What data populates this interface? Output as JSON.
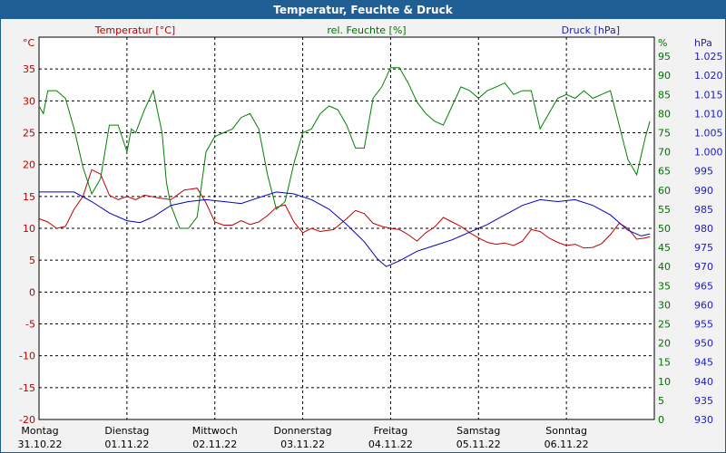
{
  "window_title": "Temperatur, Feuchte & Druck",
  "chart_data": {
    "type": "line",
    "title": "Temperatur, Feuchte & Druck",
    "x_range_days": [
      0,
      7
    ],
    "x_days": [
      {
        "day": "Montag",
        "date": "31.10.22"
      },
      {
        "day": "Dienstag",
        "date": "01.11.22"
      },
      {
        "day": "Mittwoch",
        "date": "02.11.22"
      },
      {
        "day": "Donnerstag",
        "date": "03.11.22"
      },
      {
        "day": "Freitag",
        "date": "04.11.22"
      },
      {
        "day": "Samstag",
        "date": "05.11.22"
      },
      {
        "day": "Sonntag",
        "date": "06.11.22"
      }
    ],
    "grid": true,
    "axes": {
      "temperature": {
        "label": "Temperatur [°C]",
        "unit": "°C",
        "range": [
          -20,
          40
        ],
        "ticks": [
          -20,
          -15,
          -10,
          -5,
          0,
          5,
          10,
          15,
          20,
          25,
          30,
          35
        ],
        "color": "#b40000",
        "side": "left"
      },
      "humidity": {
        "label": "rel. Feuchte [%]",
        "unit": "%",
        "range": [
          0,
          100
        ],
        "ticks": [
          0,
          5,
          10,
          15,
          20,
          25,
          30,
          35,
          40,
          45,
          50,
          55,
          60,
          65,
          70,
          75,
          80,
          85,
          90,
          95
        ],
        "color": "#007000",
        "side": "right"
      },
      "pressure": {
        "label": "Druck [hPa]",
        "unit": "hPa",
        "range": [
          930,
          1030
        ],
        "ticks": [
          "930",
          "935",
          "940",
          "945",
          "950",
          "955",
          "960",
          "965",
          "970",
          "975",
          "980",
          "985",
          "990",
          "995",
          "1.000",
          "1.005",
          "1.010",
          "1.015",
          "1.020",
          "1.025"
        ],
        "color": "#1c1cb8",
        "side": "right"
      }
    },
    "series": [
      {
        "name": "Temperatur [°C]",
        "axis": "temperature",
        "color": "#c00000",
        "points": [
          [
            0,
            11.5
          ],
          [
            0.1,
            11
          ],
          [
            0.2,
            10
          ],
          [
            0.3,
            10.3
          ],
          [
            0.4,
            13
          ],
          [
            0.5,
            15
          ],
          [
            0.6,
            19.2
          ],
          [
            0.7,
            18.5
          ],
          [
            0.8,
            15.2
          ],
          [
            0.9,
            14.5
          ],
          [
            1,
            15
          ],
          [
            1.1,
            14.5
          ],
          [
            1.2,
            15.2
          ],
          [
            1.35,
            14.8
          ],
          [
            1.5,
            14.5
          ],
          [
            1.65,
            16
          ],
          [
            1.8,
            16.3
          ],
          [
            1.9,
            14
          ],
          [
            2,
            11
          ],
          [
            2.1,
            10.5
          ],
          [
            2.2,
            10.5
          ],
          [
            2.3,
            11.2
          ],
          [
            2.4,
            10.6
          ],
          [
            2.5,
            11
          ],
          [
            2.6,
            12
          ],
          [
            2.7,
            13.3
          ],
          [
            2.8,
            13.7
          ],
          [
            2.9,
            11
          ],
          [
            3,
            9.3
          ],
          [
            3.1,
            10
          ],
          [
            3.2,
            9.5
          ],
          [
            3.35,
            9.8
          ],
          [
            3.5,
            11.5
          ],
          [
            3.6,
            12.8
          ],
          [
            3.7,
            12.3
          ],
          [
            3.8,
            10.8
          ],
          [
            3.9,
            10.3
          ],
          [
            4,
            10
          ],
          [
            4.1,
            9.8
          ],
          [
            4.2,
            9
          ],
          [
            4.3,
            8
          ],
          [
            4.4,
            9.3
          ],
          [
            4.5,
            10.2
          ],
          [
            4.6,
            11.7
          ],
          [
            4.7,
            11
          ],
          [
            4.8,
            10.3
          ],
          [
            4.9,
            9.3
          ],
          [
            5,
            8.5
          ],
          [
            5.1,
            7.8
          ],
          [
            5.2,
            7.5
          ],
          [
            5.3,
            7.7
          ],
          [
            5.4,
            7.3
          ],
          [
            5.5,
            8
          ],
          [
            5.6,
            9.8
          ],
          [
            5.7,
            9.5
          ],
          [
            5.8,
            8.5
          ],
          [
            5.9,
            7.8
          ],
          [
            6,
            7.3
          ],
          [
            6.1,
            7.5
          ],
          [
            6.2,
            6.9
          ],
          [
            6.3,
            7
          ],
          [
            6.4,
            7.6
          ],
          [
            6.5,
            9
          ],
          [
            6.6,
            10.8
          ],
          [
            6.7,
            10
          ],
          [
            6.8,
            8.3
          ],
          [
            6.9,
            8.5
          ],
          [
            6.95,
            8.7
          ]
        ]
      },
      {
        "name": "rel. Feuchte [%]",
        "axis": "humidity",
        "color": "#008000",
        "points": [
          [
            0,
            82
          ],
          [
            0.05,
            80
          ],
          [
            0.1,
            86
          ],
          [
            0.2,
            86
          ],
          [
            0.3,
            84
          ],
          [
            0.4,
            76
          ],
          [
            0.5,
            66
          ],
          [
            0.6,
            59
          ],
          [
            0.7,
            63
          ],
          [
            0.8,
            77
          ],
          [
            0.9,
            77
          ],
          [
            1,
            70
          ],
          [
            1.05,
            76
          ],
          [
            1.1,
            75
          ],
          [
            1.2,
            81
          ],
          [
            1.3,
            86
          ],
          [
            1.4,
            75
          ],
          [
            1.45,
            62
          ],
          [
            1.5,
            56
          ],
          [
            1.6,
            50
          ],
          [
            1.7,
            50
          ],
          [
            1.8,
            53
          ],
          [
            1.9,
            70
          ],
          [
            2,
            74
          ],
          [
            2.1,
            75
          ],
          [
            2.2,
            76
          ],
          [
            2.3,
            79
          ],
          [
            2.4,
            80
          ],
          [
            2.5,
            76
          ],
          [
            2.6,
            64
          ],
          [
            2.7,
            55
          ],
          [
            2.8,
            57
          ],
          [
            2.9,
            67
          ],
          [
            3,
            75
          ],
          [
            3.1,
            76
          ],
          [
            3.2,
            80
          ],
          [
            3.3,
            82
          ],
          [
            3.4,
            81
          ],
          [
            3.5,
            77
          ],
          [
            3.6,
            71
          ],
          [
            3.7,
            71
          ],
          [
            3.8,
            84
          ],
          [
            3.9,
            87
          ],
          [
            4,
            92
          ],
          [
            4.1,
            92
          ],
          [
            4.2,
            88
          ],
          [
            4.3,
            83
          ],
          [
            4.4,
            80
          ],
          [
            4.5,
            78
          ],
          [
            4.6,
            77
          ],
          [
            4.7,
            82
          ],
          [
            4.8,
            87
          ],
          [
            4.9,
            86
          ],
          [
            5,
            84
          ],
          [
            5.1,
            86
          ],
          [
            5.2,
            87
          ],
          [
            5.3,
            88
          ],
          [
            5.4,
            85
          ],
          [
            5.5,
            86
          ],
          [
            5.6,
            86
          ],
          [
            5.7,
            76
          ],
          [
            5.8,
            80
          ],
          [
            5.9,
            84
          ],
          [
            6,
            85
          ],
          [
            6.1,
            84
          ],
          [
            6.2,
            86
          ],
          [
            6.3,
            84
          ],
          [
            6.4,
            85
          ],
          [
            6.5,
            86
          ],
          [
            6.6,
            77
          ],
          [
            6.7,
            68
          ],
          [
            6.8,
            64
          ],
          [
            6.9,
            74
          ],
          [
            6.95,
            78
          ]
        ]
      },
      {
        "name": "Druck [hPa]",
        "axis": "pressure",
        "color": "#0000c0",
        "points": [
          [
            0,
            989.5
          ],
          [
            0.2,
            989.5
          ],
          [
            0.4,
            989.5
          ],
          [
            0.6,
            987
          ],
          [
            0.8,
            984
          ],
          [
            1,
            982
          ],
          [
            1.15,
            981.5
          ],
          [
            1.3,
            983
          ],
          [
            1.5,
            986
          ],
          [
            1.7,
            987
          ],
          [
            1.9,
            987.5
          ],
          [
            2.1,
            987
          ],
          [
            2.3,
            986.5
          ],
          [
            2.5,
            988
          ],
          [
            2.7,
            989.5
          ],
          [
            2.9,
            989
          ],
          [
            3.1,
            987.5
          ],
          [
            3.3,
            985
          ],
          [
            3.5,
            981
          ],
          [
            3.7,
            976.5
          ],
          [
            3.85,
            972
          ],
          [
            3.95,
            970
          ],
          [
            4.1,
            971.5
          ],
          [
            4.3,
            974
          ],
          [
            4.5,
            975.5
          ],
          [
            4.7,
            977
          ],
          [
            4.9,
            979
          ],
          [
            5.1,
            981
          ],
          [
            5.3,
            983.5
          ],
          [
            5.5,
            986
          ],
          [
            5.7,
            987.5
          ],
          [
            5.9,
            987
          ],
          [
            6.1,
            987.5
          ],
          [
            6.3,
            986
          ],
          [
            6.5,
            983.5
          ],
          [
            6.7,
            979.5
          ],
          [
            6.85,
            978
          ],
          [
            6.95,
            978.5
          ]
        ]
      }
    ]
  }
}
